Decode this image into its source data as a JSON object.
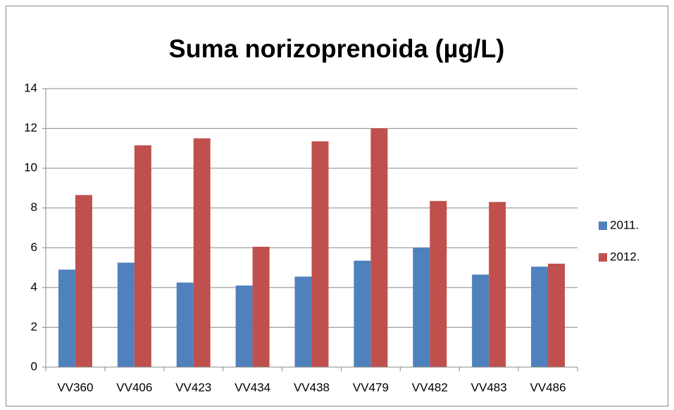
{
  "chart_data": {
    "type": "bar",
    "title": "Suma norizoprenoida (µg/L)",
    "categories": [
      "VV360",
      "VV406",
      "VV423",
      "VV434",
      "VV438",
      "VV479",
      "VV482",
      "VV483",
      "VV486"
    ],
    "series": [
      {
        "name": "2011.",
        "color": "#4f81bd",
        "values": [
          4.9,
          5.25,
          4.25,
          4.1,
          4.55,
          5.35,
          6.0,
          4.65,
          5.05
        ]
      },
      {
        "name": "2012.",
        "color": "#c0504d",
        "values": [
          8.65,
          11.15,
          11.5,
          6.05,
          11.35,
          12.0,
          8.35,
          8.3,
          5.2
        ]
      }
    ],
    "ylim": [
      0,
      14
    ],
    "yticks": [
      0,
      2,
      4,
      6,
      8,
      10,
      12,
      14
    ],
    "grid": true,
    "legend": "right"
  }
}
